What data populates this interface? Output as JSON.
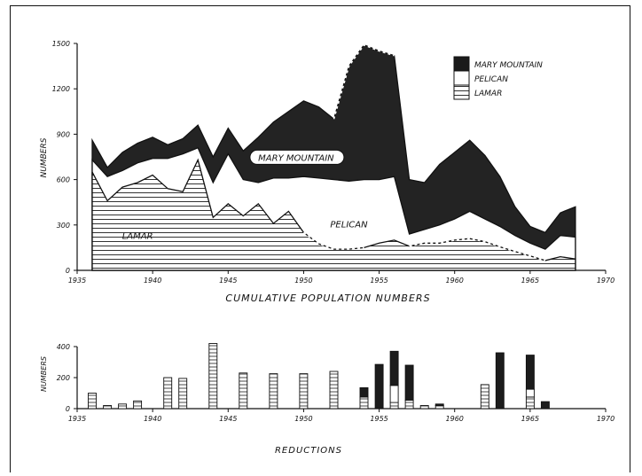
{
  "chart_data": [
    {
      "type": "area",
      "title": "",
      "xlabel": "CUMULATIVE POPULATION NUMBERS",
      "ylabel": "NUMBERS",
      "xlim": [
        1935,
        1970
      ],
      "ylim": [
        0,
        1500
      ],
      "x_ticks": [
        "1935",
        "1940",
        "1945",
        "1950",
        "1955",
        "1960",
        "1965",
        "1970"
      ],
      "y_ticks": [
        "0",
        "300",
        "600",
        "900",
        "1200",
        "1500"
      ],
      "legend_position": "top-right",
      "legend": [
        {
          "label": "MARY MOUNTAIN",
          "swatch": "solid"
        },
        {
          "label": "PELICAN",
          "swatch": "blank"
        },
        {
          "label": "LAMAR",
          "swatch": "hatched"
        }
      ],
      "annotations": [
        {
          "text": "MARY MOUNTAIN",
          "x": 1949.5,
          "y": 730
        },
        {
          "text": "PELICAN",
          "x": 1953,
          "y": 290
        },
        {
          "text": "LAMAR",
          "x": 1939,
          "y": 215
        }
      ],
      "x": [
        1936,
        1937,
        1938,
        1939,
        1940,
        1941,
        1942,
        1943,
        1944,
        1945,
        1946,
        1947,
        1948,
        1949,
        1950,
        1951,
        1952,
        1953,
        1954,
        1955,
        1956,
        1957,
        1958,
        1959,
        1960,
        1961,
        1962,
        1963,
        1964,
        1965,
        1966,
        1967,
        1968
      ],
      "series": [
        {
          "name": "LAMAR",
          "values": [
            650,
            460,
            550,
            580,
            630,
            540,
            520,
            730,
            350,
            440,
            360,
            440,
            310,
            390,
            250,
            175,
            140,
            140,
            150,
            180,
            200,
            160,
            180,
            180,
            200,
            210,
            190,
            155,
            125,
            95,
            65,
            90,
            75
          ]
        },
        {
          "name": "PELICAN",
          "values": [
            730,
            620,
            660,
            710,
            740,
            740,
            770,
            810,
            580,
            770,
            600,
            580,
            610,
            610,
            620,
            610,
            600,
            590,
            600,
            600,
            620,
            240,
            270,
            300,
            340,
            390,
            340,
            290,
            230,
            180,
            140,
            230,
            220
          ]
        },
        {
          "name": "MARY MOUNTAIN",
          "values": [
            860,
            680,
            780,
            840,
            880,
            830,
            870,
            960,
            750,
            940,
            790,
            880,
            980,
            1050,
            1120,
            1080,
            1000,
            1350,
            1490,
            1450,
            1420,
            600,
            580,
            700,
            780,
            860,
            760,
            620,
            420,
            290,
            250,
            380,
            420
          ]
        }
      ]
    },
    {
      "type": "bar",
      "title": "",
      "xlabel": "REDUCTIONS",
      "ylabel": "NUMBERS",
      "xlim": [
        1935,
        1970
      ],
      "ylim": [
        0,
        400
      ],
      "x_ticks": [
        "1935",
        "1940",
        "1945",
        "1950",
        "1955",
        "1960",
        "1965",
        "1970"
      ],
      "y_ticks": [
        "0",
        "200",
        "400"
      ],
      "x": [
        1936,
        1937,
        1938,
        1939,
        1941,
        1942,
        1944,
        1946,
        1948,
        1950,
        1952,
        1954,
        1955,
        1956,
        1957,
        1958,
        1959,
        1962,
        1963,
        1965,
        1966
      ],
      "series": [
        {
          "name": "LAMAR",
          "values": [
            100,
            20,
            30,
            50,
            200,
            195,
            420,
            230,
            225,
            225,
            240,
            75,
            0,
            40,
            55,
            20,
            20,
            155,
            0,
            75,
            0
          ]
        },
        {
          "name": "PELICAN",
          "values": [
            0,
            0,
            0,
            0,
            0,
            0,
            0,
            0,
            0,
            0,
            0,
            0,
            0,
            110,
            0,
            0,
            0,
            0,
            0,
            50,
            0
          ]
        },
        {
          "name": "MARY MOUNTAIN",
          "values": [
            0,
            0,
            0,
            0,
            0,
            0,
            0,
            0,
            0,
            0,
            0,
            60,
            285,
            220,
            225,
            0,
            10,
            0,
            360,
            220,
            45
          ]
        }
      ]
    }
  ]
}
